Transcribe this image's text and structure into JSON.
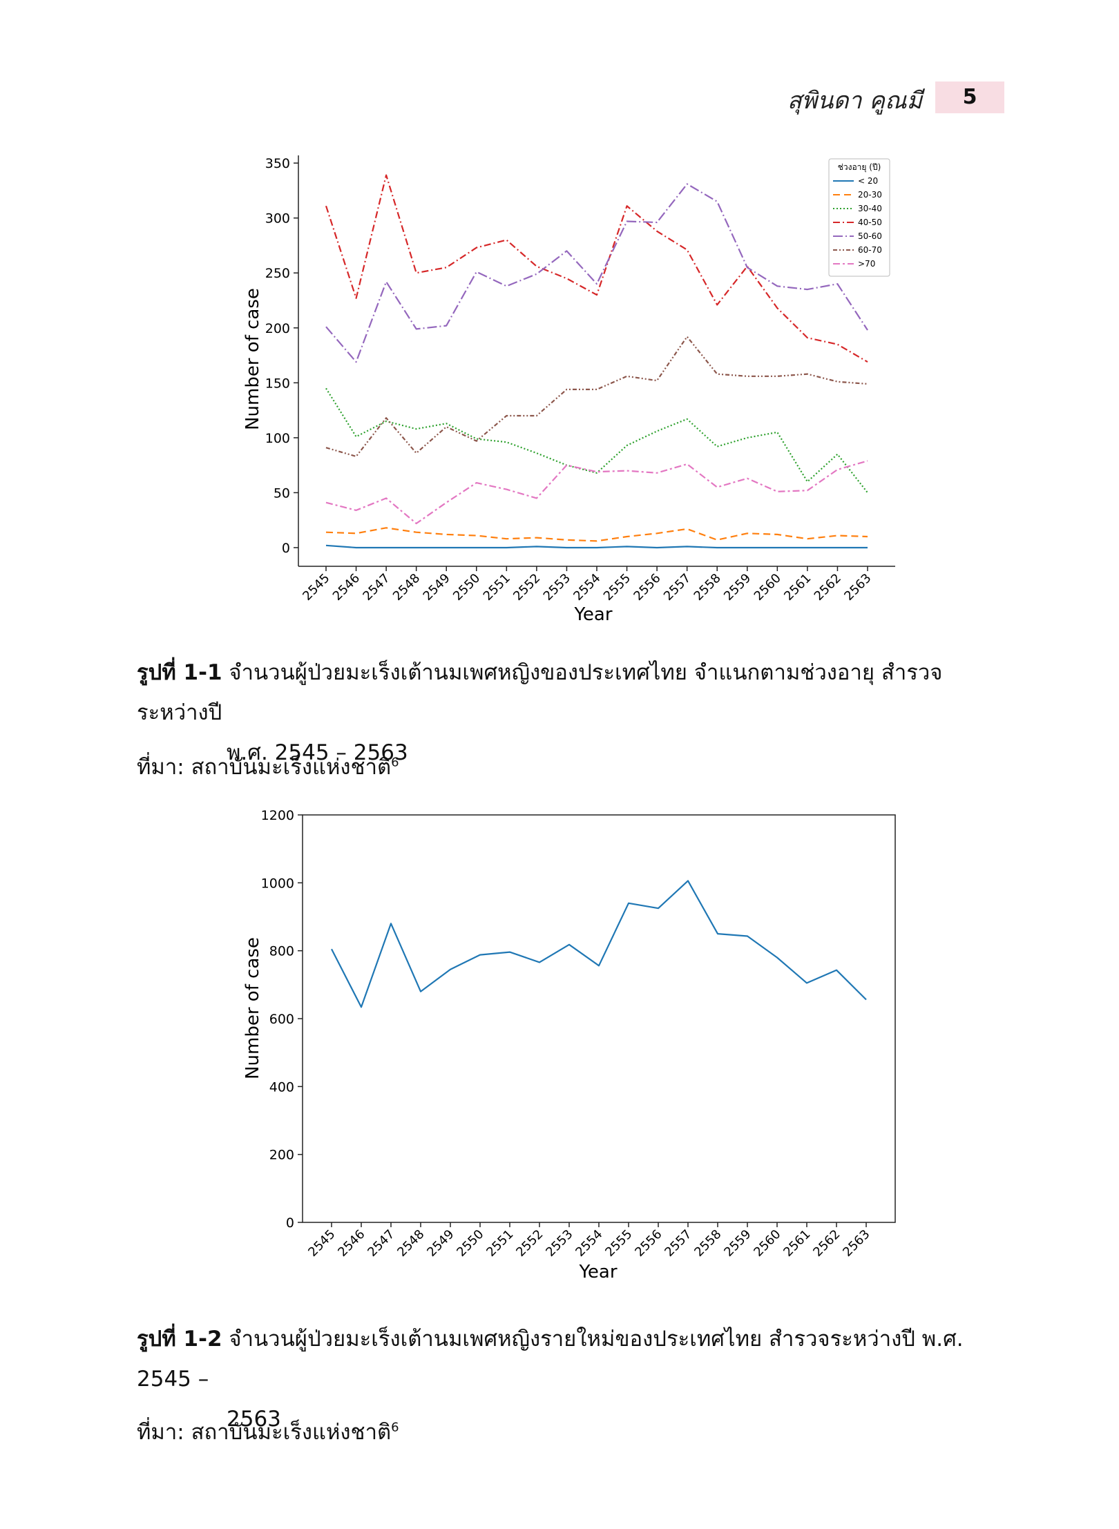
{
  "header": {
    "author": "สุพินดา คูณมี",
    "page_number": "5"
  },
  "figure1": {
    "caption_label": "รูปที่ 1-1",
    "caption_line1": "จำนวนผู้ป่วยมะเร็งเต้านมเพศหญิงของประเทศไทย จำแนกตามช่วงอายุ สำรวจระหว่างปี",
    "caption_line2": "พ.ศ. 2545 – 2563",
    "source_label": "ที่มา: สถาบันมะเร็งแห่งชาติ",
    "source_ref": "6"
  },
  "figure2": {
    "caption_label": "รูปที่ 1-2",
    "caption_line1": "จำนวนผู้ป่วยมะเร็งเต้านมเพศหญิงรายใหม่ของประเทศไทย สำรวจระหว่างปี พ.ศ. 2545 –",
    "caption_line2": "2563",
    "source_label": "ที่มา: สถาบันมะเร็งแห่งชาติ",
    "source_ref": "6"
  },
  "chart_data": [
    {
      "type": "line",
      "title": "",
      "xlabel": "Year",
      "ylabel": "Number of case",
      "ylim": [
        -17,
        357
      ],
      "yticks": [
        0,
        50,
        100,
        150,
        200,
        250,
        300,
        350
      ],
      "grid": false,
      "legend_title": "ช่วงอายุ (ปี)",
      "legend_position": "top-right",
      "categories": [
        "2545",
        "2546",
        "2547",
        "2548",
        "2549",
        "2550",
        "2551",
        "2552",
        "2553",
        "2554",
        "2555",
        "2556",
        "2557",
        "2558",
        "2559",
        "2560",
        "2561",
        "2562",
        "2563"
      ],
      "series": [
        {
          "name": "< 20",
          "color": "#1f77b4",
          "dash": "",
          "values": [
            2,
            0,
            0,
            0,
            0,
            0,
            0,
            1,
            0,
            0,
            1,
            0,
            1,
            0,
            0,
            0,
            0,
            0,
            0
          ]
        },
        {
          "name": "20-30",
          "color": "#ff7f0e",
          "dash": "10,6",
          "values": [
            14,
            13,
            18,
            14,
            12,
            11,
            8,
            9,
            7,
            6,
            10,
            13,
            17,
            7,
            13,
            12,
            8,
            11,
            10
          ]
        },
        {
          "name": "30-40",
          "color": "#2ca02c",
          "dash": "2,3",
          "values": [
            145,
            101,
            115,
            108,
            113,
            99,
            96,
            86,
            75,
            68,
            93,
            106,
            117,
            92,
            100,
            105,
            60,
            85,
            50
          ]
        },
        {
          "name": "40-50",
          "color": "#d62728",
          "dash": "10,4,2,4",
          "values": [
            311,
            227,
            339,
            250,
            255,
            273,
            280,
            256,
            245,
            230,
            311,
            288,
            271,
            221,
            256,
            218,
            191,
            185,
            169
          ]
        },
        {
          "name": "50-60",
          "color": "#9467bd",
          "dash": "14,4,2,4",
          "values": [
            201,
            169,
            242,
            199,
            202,
            251,
            238,
            249,
            270,
            240,
            297,
            296,
            331,
            315,
            255,
            238,
            235,
            240,
            198
          ]
        },
        {
          "name": "60-70",
          "color": "#8c564b",
          "dash": "6,3,2,3,2,3",
          "values": [
            91,
            83,
            118,
            86,
            110,
            97,
            120,
            120,
            144,
            144,
            156,
            152,
            192,
            158,
            156,
            156,
            158,
            151,
            149
          ]
        },
        {
          "name": ">70",
          "color": "#e377c2",
          "dash": "10,4,3,4",
          "values": [
            41,
            34,
            45,
            22,
            41,
            59,
            53,
            45,
            75,
            69,
            70,
            68,
            76,
            55,
            63,
            51,
            52,
            71,
            79
          ]
        }
      ]
    },
    {
      "type": "line",
      "title": "",
      "xlabel": "Year",
      "ylabel": "Number of case",
      "ylim": [
        0,
        1200
      ],
      "yticks": [
        0,
        200,
        400,
        600,
        800,
        1000,
        1200
      ],
      "grid": false,
      "categories": [
        "2545",
        "2546",
        "2547",
        "2548",
        "2549",
        "2550",
        "2551",
        "2552",
        "2553",
        "2554",
        "2555",
        "2556",
        "2557",
        "2558",
        "2559",
        "2560",
        "2561",
        "2562",
        "2563"
      ],
      "series": [
        {
          "color": "#1f77b4",
          "values": [
            805,
            634,
            880,
            680,
            745,
            788,
            796,
            766,
            818,
            756,
            940,
            925,
            1006,
            850,
            843,
            780,
            705,
            743,
            656
          ]
        }
      ]
    }
  ]
}
